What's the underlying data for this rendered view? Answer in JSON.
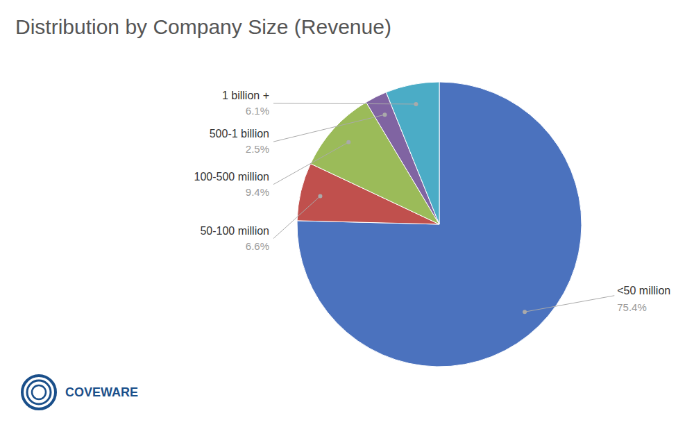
{
  "chart_data": {
    "type": "pie",
    "title": "Distribution by Company Size (Revenue)",
    "categories": [
      "<50 million",
      "50-100 million",
      "100-500 million",
      "500-1 billion",
      "1 billion +"
    ],
    "values": [
      75.4,
      6.6,
      9.4,
      2.5,
      6.1
    ],
    "value_labels": [
      "75.4%",
      "6.6%",
      "9.4%",
      "2.5%",
      "6.1%"
    ],
    "colors": [
      "#4B72BE",
      "#C0504D",
      "#9BBB59",
      "#8064A2",
      "#4BACC6"
    ],
    "data_labels": true,
    "annotations": [
      "COVEWARE"
    ]
  }
}
